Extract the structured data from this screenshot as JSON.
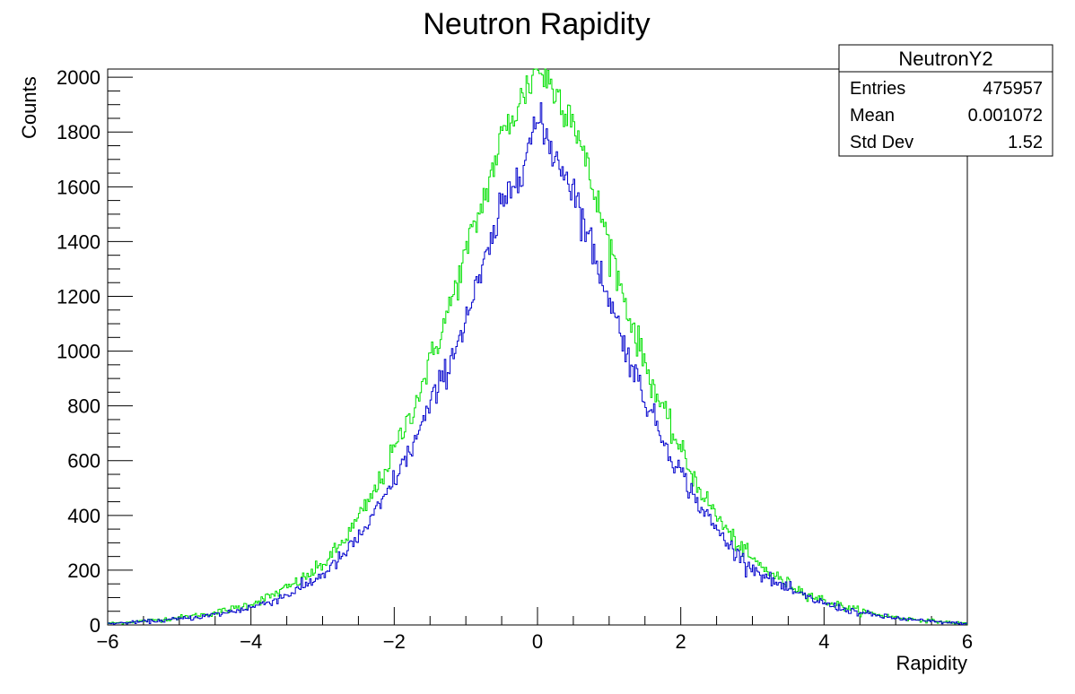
{
  "chart_data": {
    "type": "histogram",
    "title": "Neutron Rapidity",
    "xlabel": "Rapidity",
    "ylabel": "Counts",
    "xlim": [
      -6,
      6
    ],
    "ylim": [
      0,
      2030
    ],
    "xticks": [
      -6,
      -4,
      -2,
      0,
      2,
      4,
      6
    ],
    "xtick_labels": [
      "−6",
      "−4",
      "−2",
      "0",
      "2",
      "4",
      "6"
    ],
    "yticks": [
      0,
      200,
      400,
      600,
      800,
      1000,
      1200,
      1400,
      1600,
      1800,
      2000
    ],
    "ytick_labels": [
      "0",
      "200",
      "400",
      "600",
      "800",
      "1000",
      "1200",
      "1400",
      "1600",
      "1800",
      "2000"
    ],
    "grid": false,
    "series": [
      {
        "color": "#0000cc",
        "x": [
          -6.0,
          -5.5,
          -5.0,
          -4.5,
          -4.0,
          -3.5,
          -3.0,
          -2.5,
          -2.0,
          -1.5,
          -1.0,
          -0.5,
          0.0,
          0.5,
          1.0,
          1.5,
          2.0,
          2.5,
          3.0,
          3.5,
          4.0,
          4.5,
          5.0,
          5.5,
          6.0
        ],
        "values": [
          5,
          12,
          22,
          38,
          65,
          110,
          185,
          320,
          530,
          800,
          1120,
          1520,
          1840,
          1600,
          1200,
          830,
          560,
          350,
          210,
          130,
          80,
          45,
          25,
          13,
          5
        ]
      },
      {
        "color": "#00e000",
        "x": [
          -6.0,
          -5.5,
          -5.0,
          -4.5,
          -4.0,
          -3.5,
          -3.0,
          -2.5,
          -2.0,
          -1.5,
          -1.0,
          -0.5,
          0.0,
          0.5,
          1.0,
          1.5,
          2.0,
          2.5,
          3.0,
          3.5,
          4.0,
          4.5,
          5.0,
          5.5,
          6.0
        ],
        "values": [
          6,
          15,
          27,
          45,
          78,
          135,
          220,
          390,
          640,
          960,
          1360,
          1780,
          2040,
          1860,
          1400,
          960,
          640,
          400,
          240,
          150,
          90,
          52,
          28,
          15,
          6
        ]
      }
    ]
  },
  "stats_box": {
    "name": "NeutronY2",
    "rows": [
      {
        "label": "Entries",
        "value": "475957"
      },
      {
        "label": "Mean",
        "value": "0.001072"
      },
      {
        "label": "Std Dev",
        "value": "1.52"
      }
    ]
  }
}
